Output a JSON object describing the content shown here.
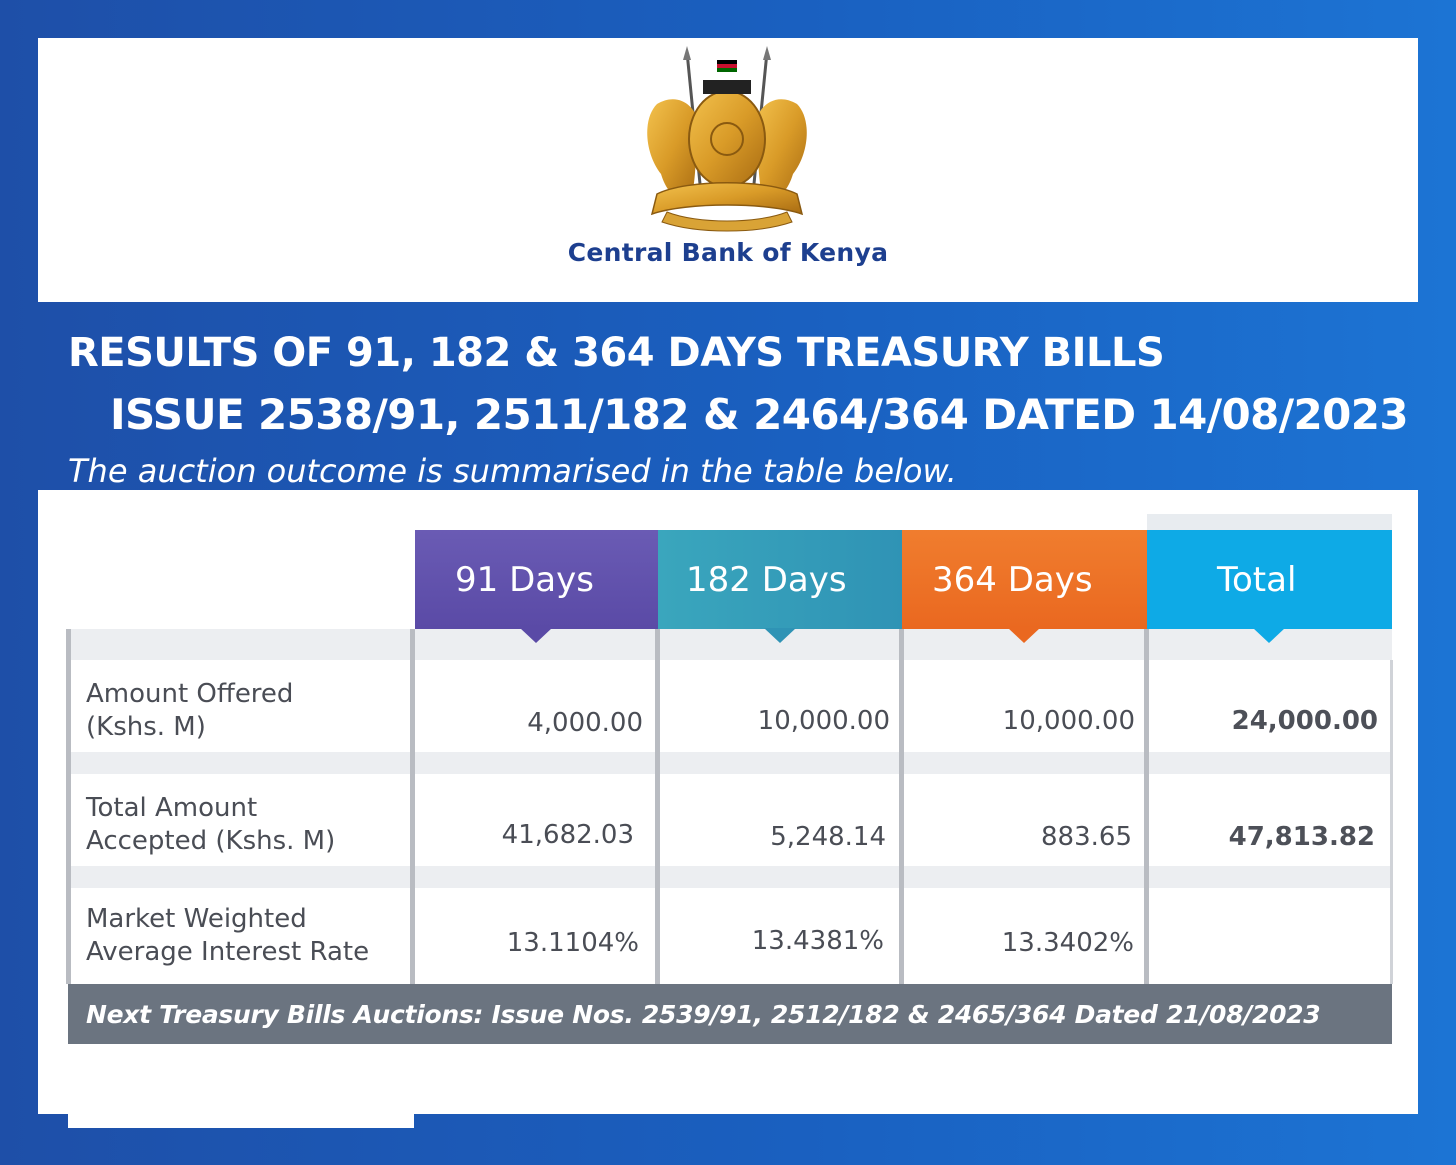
{
  "header": {
    "bank_name": "Central Bank of Kenya",
    "title_line1": "RESULTS OF 91, 182 & 364 DAYS TREASURY BILLS",
    "title_line2": "ISSUE 2538/91, 2511/182 & 2464/364 DATED 14/08/2023",
    "subtitle": "The auction outcome is summarised in the table below."
  },
  "table": {
    "columns": [
      "91 Days",
      "182 Days",
      "364 Days",
      "Total"
    ],
    "column_colors": [
      "#5a4aa6",
      "#2f93b5",
      "#ea6820",
      "#0eaae6"
    ],
    "rows": [
      {
        "label": "Amount Offered (Kshs. M)",
        "label_lines": [
          "Amount Offered",
          "(Kshs. M)"
        ],
        "values": [
          "4,000.00",
          "10,000.00",
          "10,000.00",
          "24,000.00"
        ]
      },
      {
        "label": "Total Amount Accepted (Kshs. M)",
        "label_lines": [
          "Total Amount",
          "Accepted (Kshs. M)"
        ],
        "values": [
          "41,682.03",
          "5,248.14",
          "883.65",
          "47,813.82"
        ]
      },
      {
        "label": "Market Weighted Average Interest Rate",
        "label_lines": [
          "Market Weighted",
          "Average Interest Rate"
        ],
        "values": [
          "13.1104%",
          "13.4381%",
          "13.3402%",
          ""
        ]
      }
    ]
  },
  "footer": {
    "next_auctions": "Next Treasury Bills Auctions: Issue Nos. 2539/91, 2512/182 & 2465/364 Dated 21/08/2023"
  },
  "icons": {
    "crest": "kenya-coat-of-arms-icon"
  }
}
